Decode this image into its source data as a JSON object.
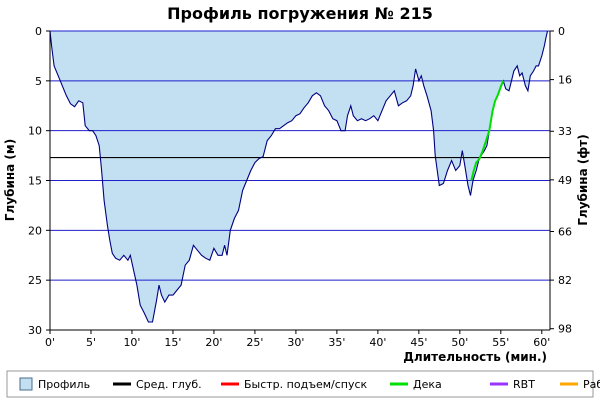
{
  "chart_data": {
    "type": "area",
    "title": "Профиль погружения № 215",
    "xlabel": "Длительность (мин.)",
    "ylabel_left": "Глубина (м)",
    "ylabel_right": "Глубина (фт)",
    "xlim": [
      0,
      61
    ],
    "ylim_m": [
      0,
      30
    ],
    "x_ticks": [
      0,
      5,
      10,
      15,
      20,
      25,
      30,
      35,
      40,
      45,
      50,
      55,
      60
    ],
    "x_tick_labels": [
      "0'",
      "5'",
      "10'",
      "15'",
      "20'",
      "25'",
      "30'",
      "35'",
      "40'",
      "45'",
      "50'",
      "55'",
      "60'"
    ],
    "y_ticks_left": [
      0,
      5,
      10,
      15,
      20,
      25,
      30
    ],
    "y_tick_labels_left": [
      "0",
      "5",
      "10",
      "15",
      "20",
      "25",
      "30"
    ],
    "y_ticks_right_ft": [
      0,
      16,
      33,
      49,
      66,
      82,
      98
    ],
    "y_tick_labels_right": [
      "0",
      "16",
      "33",
      "49",
      "66",
      "82",
      "98"
    ],
    "grid": "horizontal",
    "average_depth_m": 12.7,
    "colors": {
      "profile_fill": "#c2e0f2",
      "profile_line": "#000080",
      "avg_line": "#000000",
      "gridline": "#1f1fcc",
      "ascent": "#ff0000",
      "deco": "#00e000",
      "rbt": "#9933ff",
      "work": "#ffa500"
    },
    "profile": {
      "name": "Профиль",
      "points": [
        [
          0,
          0
        ],
        [
          0.2,
          1.5
        ],
        [
          0.5,
          3.5
        ],
        [
          1,
          4.5
        ],
        [
          1.5,
          5.5
        ],
        [
          2,
          6.5
        ],
        [
          2.5,
          7.3
        ],
        [
          3,
          7.6
        ],
        [
          3.5,
          7
        ],
        [
          4,
          7.2
        ],
        [
          4.3,
          9.5
        ],
        [
          4.8,
          10
        ],
        [
          5.2,
          10
        ],
        [
          5.6,
          10.5
        ],
        [
          6,
          11.5
        ],
        [
          6.3,
          14
        ],
        [
          6.6,
          17
        ],
        [
          7,
          19.5
        ],
        [
          7.3,
          21
        ],
        [
          7.6,
          22.3
        ],
        [
          8,
          22.8
        ],
        [
          8.5,
          23
        ],
        [
          9,
          22.5
        ],
        [
          9.5,
          23
        ],
        [
          9.8,
          22.5
        ],
        [
          10.2,
          24
        ],
        [
          10.6,
          25.5
        ],
        [
          11,
          27.5
        ],
        [
          11.5,
          28.3
        ],
        [
          12,
          29.2
        ],
        [
          12.5,
          29.2
        ],
        [
          13,
          27
        ],
        [
          13.3,
          25.5
        ],
        [
          13.6,
          26.5
        ],
        [
          14,
          27.2
        ],
        [
          14.5,
          26.5
        ],
        [
          15,
          26.5
        ],
        [
          15.5,
          26
        ],
        [
          16,
          25.5
        ],
        [
          16.5,
          23.5
        ],
        [
          17,
          23
        ],
        [
          17.5,
          21.5
        ],
        [
          18,
          22
        ],
        [
          18.5,
          22.5
        ],
        [
          19,
          22.8
        ],
        [
          19.5,
          23
        ],
        [
          20,
          21.8
        ],
        [
          20.5,
          22.5
        ],
        [
          21,
          22.5
        ],
        [
          21.3,
          21.5
        ],
        [
          21.6,
          22.5
        ],
        [
          22,
          20
        ],
        [
          22.5,
          18.8
        ],
        [
          23,
          18
        ],
        [
          23.5,
          16
        ],
        [
          24,
          15
        ],
        [
          24.5,
          14
        ],
        [
          25,
          13.2
        ],
        [
          25.5,
          12.8
        ],
        [
          26,
          12.6
        ],
        [
          26.5,
          11
        ],
        [
          27,
          10.5
        ],
        [
          27.5,
          9.8
        ],
        [
          28,
          9.8
        ],
        [
          28.5,
          9.5
        ],
        [
          29,
          9.2
        ],
        [
          29.5,
          9
        ],
        [
          30,
          8.5
        ],
        [
          30.5,
          8.3
        ],
        [
          31,
          7.7
        ],
        [
          31.5,
          7.2
        ],
        [
          32,
          6.5
        ],
        [
          32.5,
          6.2
        ],
        [
          33,
          6.5
        ],
        [
          33.5,
          7.5
        ],
        [
          34,
          8
        ],
        [
          34.5,
          8.8
        ],
        [
          35,
          9
        ],
        [
          35.5,
          10
        ],
        [
          36,
          10
        ],
        [
          36.3,
          8.5
        ],
        [
          36.7,
          7.5
        ],
        [
          37,
          8.5
        ],
        [
          37.5,
          9
        ],
        [
          38,
          8.8
        ],
        [
          38.5,
          9
        ],
        [
          39,
          8.8
        ],
        [
          39.5,
          8.5
        ],
        [
          40,
          9
        ],
        [
          40.5,
          8
        ],
        [
          41,
          7
        ],
        [
          41.5,
          6.5
        ],
        [
          42,
          6
        ],
        [
          42.5,
          7.5
        ],
        [
          43,
          7.2
        ],
        [
          43.5,
          7
        ],
        [
          44,
          6.5
        ],
        [
          44.3,
          5.5
        ],
        [
          44.6,
          3.8
        ],
        [
          45,
          5
        ],
        [
          45.3,
          4.5
        ],
        [
          45.6,
          5.5
        ],
        [
          46,
          6.5
        ],
        [
          46.5,
          8
        ],
        [
          46.8,
          10
        ],
        [
          47,
          12.5
        ],
        [
          47.5,
          15.5
        ],
        [
          48,
          15.3
        ],
        [
          48.5,
          14
        ],
        [
          49,
          13
        ],
        [
          49.5,
          14
        ],
        [
          50,
          13.5
        ],
        [
          50.3,
          12
        ],
        [
          50.6,
          13.5
        ],
        [
          51,
          15.5
        ],
        [
          51.3,
          16.5
        ],
        [
          51.6,
          15
        ],
        [
          52,
          14
        ],
        [
          52.3,
          13
        ],
        [
          52.6,
          12.5
        ],
        [
          53,
          12
        ],
        [
          53.3,
          11.5
        ],
        [
          53.6,
          10
        ],
        [
          54,
          8
        ],
        [
          54.3,
          7
        ],
        [
          54.6,
          6.5
        ],
        [
          55,
          5.5
        ],
        [
          55.3,
          5
        ],
        [
          55.6,
          5.8
        ],
        [
          56,
          6
        ],
        [
          56.3,
          5
        ],
        [
          56.6,
          4
        ],
        [
          57,
          3.5
        ],
        [
          57.3,
          4.5
        ],
        [
          57.6,
          4.2
        ],
        [
          58,
          5.5
        ],
        [
          58.3,
          6
        ],
        [
          58.6,
          4.5
        ],
        [
          59,
          4
        ],
        [
          59.3,
          3.5
        ],
        [
          59.6,
          3.5
        ],
        [
          60,
          2.5
        ],
        [
          60.3,
          1.5
        ],
        [
          60.5,
          0.7
        ],
        [
          60.7,
          0
        ]
      ]
    },
    "deco_segment": {
      "name": "Дека",
      "points": [
        [
          51.4,
          15
        ],
        [
          51.7,
          14
        ],
        [
          52,
          13.2
        ],
        [
          52.4,
          12.8
        ],
        [
          52.8,
          12
        ],
        [
          53.2,
          11
        ],
        [
          53.6,
          10
        ],
        [
          54,
          8
        ],
        [
          54.3,
          7
        ],
        [
          54.6,
          6.5
        ],
        [
          55,
          5.6
        ],
        [
          55.3,
          5
        ]
      ]
    },
    "legend": {
      "position": "bottom",
      "items": [
        {
          "key": "profile",
          "label": "Профиль",
          "kind": "box"
        },
        {
          "key": "avg",
          "label": "Сред. глуб.",
          "kind": "line"
        },
        {
          "key": "ascent",
          "label": "Быстр. подъем/спуск",
          "kind": "line"
        },
        {
          "key": "deco",
          "label": "Дека",
          "kind": "line"
        },
        {
          "key": "rbt",
          "label": "RBT",
          "kind": "line"
        },
        {
          "key": "work",
          "label": "Раб.",
          "kind": "line"
        }
      ]
    }
  }
}
